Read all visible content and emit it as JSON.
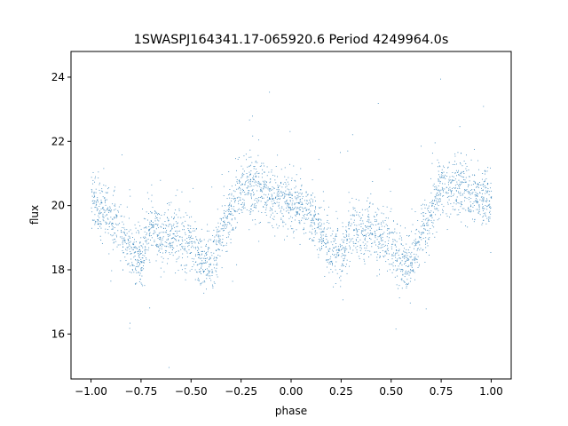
{
  "chart_data": {
    "type": "scatter",
    "title": "1SWASPJ164341.17-065920.6 Period 4249964.0s",
    "xlabel": "phase",
    "ylabel": "flux",
    "xlim": [
      -1.1,
      1.1
    ],
    "ylim": [
      14.6,
      24.8
    ],
    "grid": false,
    "marker_color": "#1f77b4",
    "x_ticks": [
      -1.0,
      -0.75,
      -0.5,
      -0.25,
      0.0,
      0.25,
      0.5,
      0.75,
      1.0
    ],
    "x_tick_labels": [
      "−1.00",
      "−0.75",
      "−0.50",
      "−0.25",
      "0.00",
      "0.25",
      "0.50",
      "0.75",
      "1.00"
    ],
    "y_ticks": [
      16,
      18,
      20,
      22,
      24
    ],
    "y_tick_labels": [
      "16",
      "18",
      "20",
      "22",
      "24"
    ],
    "trend": {
      "phase": [
        0.0,
        0.05,
        0.1,
        0.15,
        0.2,
        0.25,
        0.3,
        0.35,
        0.4,
        0.45,
        0.5,
        0.55,
        0.6,
        0.65,
        0.7,
        0.75,
        0.8,
        0.85,
        0.9,
        0.95,
        1.0
      ],
      "flux": [
        20.2,
        19.9,
        19.6,
        19.2,
        18.6,
        18.4,
        19.4,
        19.0,
        19.3,
        19.0,
        18.9,
        18.2,
        18.2,
        19.2,
        19.8,
        20.6,
        20.7,
        20.5,
        20.3,
        20.2,
        20.2
      ]
    },
    "scatter_sigma": 0.45,
    "n_points": 3200
  }
}
